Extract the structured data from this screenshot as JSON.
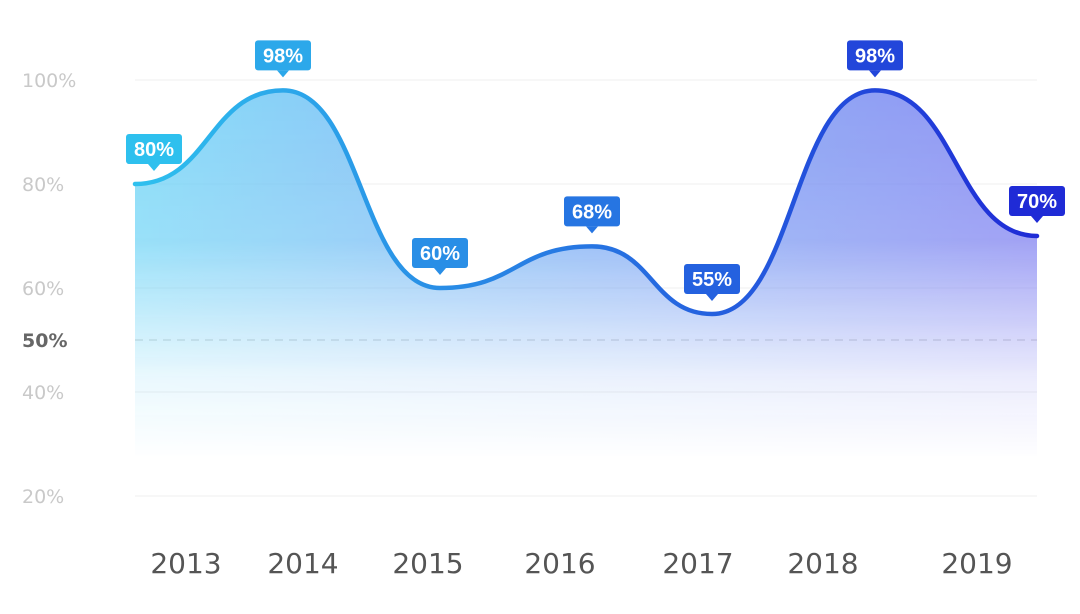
{
  "chart_data": {
    "type": "area",
    "x": [
      "2013",
      "2014",
      "2015",
      "2016",
      "2017",
      "2018",
      "2019"
    ],
    "x_tick_labels": [
      "2013",
      "2014",
      "2015",
      "2016",
      "2017",
      "2018",
      "2019"
    ],
    "values": [
      80,
      98,
      60,
      68,
      55,
      98,
      70
    ],
    "data_labels": [
      "80%",
      "98%",
      "60%",
      "68%",
      "55%",
      "98%",
      "70%"
    ],
    "y_ticks": [
      {
        "value": 100,
        "label": "100%"
      },
      {
        "value": 80,
        "label": "80%"
      },
      {
        "value": 60,
        "label": "60%"
      },
      {
        "value": 50,
        "label": "50%",
        "emphasized": true
      },
      {
        "value": 40,
        "label": "40%"
      },
      {
        "value": 20,
        "label": "20%"
      }
    ],
    "reference_line": 50,
    "ylim": [
      20,
      100
    ],
    "grid": true,
    "colors": {
      "start": "#2ec0ee",
      "end": "#1f2bd6",
      "fill_start": "#6fd4f6",
      "fill_end": "#7b7cf0"
    }
  }
}
